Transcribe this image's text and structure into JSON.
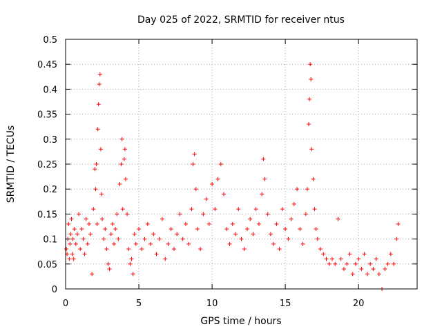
{
  "chart_data": {
    "type": "scatter",
    "title": "Day 025 of 2022, SRMTID for receiver ntus",
    "xlabel": "GPS time / hours",
    "ylabel": "SRMTID / TECUs",
    "xlim": [
      0,
      24
    ],
    "ylim": [
      0,
      0.5
    ],
    "x_ticks": [
      0,
      5,
      10,
      15,
      20
    ],
    "y_ticks": [
      0,
      0.05,
      0.1,
      0.15,
      0.2,
      0.25,
      0.3,
      0.35,
      0.4,
      0.45,
      0.5
    ],
    "x_tick_labels": [
      "0",
      "5",
      "10",
      "15",
      "20"
    ],
    "y_tick_labels": [
      "0",
      "0.05",
      "0.1",
      "0.15",
      "0.2",
      "0.25",
      "0.3",
      "0.35",
      "0.4",
      "0.45",
      "0.5"
    ],
    "grid": true,
    "marker": "+",
    "marker_color": "#ff0000",
    "series": [
      {
        "name": "ntus",
        "points": [
          [
            0.05,
            0.08
          ],
          [
            0.1,
            0.07
          ],
          [
            0.15,
            0.1
          ],
          [
            0.2,
            0.13
          ],
          [
            0.25,
            0.06
          ],
          [
            0.3,
            0.09
          ],
          [
            0.35,
            0.11
          ],
          [
            0.4,
            0.14
          ],
          [
            0.45,
            0.07
          ],
          [
            0.5,
            0.1
          ],
          [
            0.55,
            0.06
          ],
          [
            0.6,
            0.12
          ],
          [
            0.7,
            0.09
          ],
          [
            0.8,
            0.11
          ],
          [
            0.9,
            0.15
          ],
          [
            1.0,
            0.08
          ],
          [
            1.1,
            0.12
          ],
          [
            1.2,
            0.1
          ],
          [
            1.3,
            0.07
          ],
          [
            1.4,
            0.14
          ],
          [
            1.5,
            0.09
          ],
          [
            1.6,
            0.13
          ],
          [
            1.7,
            0.11
          ],
          [
            1.8,
            0.03
          ],
          [
            1.9,
            0.16
          ],
          [
            2.0,
            0.24
          ],
          [
            2.05,
            0.2
          ],
          [
            2.1,
            0.25
          ],
          [
            2.15,
            0.13
          ],
          [
            2.2,
            0.32
          ],
          [
            2.25,
            0.37
          ],
          [
            2.3,
            0.41
          ],
          [
            2.35,
            0.43
          ],
          [
            2.4,
            0.28
          ],
          [
            2.45,
            0.19
          ],
          [
            2.5,
            0.14
          ],
          [
            2.6,
            0.1
          ],
          [
            2.7,
            0.12
          ],
          [
            2.8,
            0.08
          ],
          [
            2.9,
            0.05
          ],
          [
            3.0,
            0.04
          ],
          [
            3.1,
            0.11
          ],
          [
            3.2,
            0.13
          ],
          [
            3.3,
            0.09
          ],
          [
            3.4,
            0.12
          ],
          [
            3.5,
            0.15
          ],
          [
            3.6,
            0.1
          ],
          [
            3.7,
            0.21
          ],
          [
            3.8,
            0.25
          ],
          [
            3.85,
            0.3
          ],
          [
            3.9,
            0.16
          ],
          [
            4.0,
            0.26
          ],
          [
            4.05,
            0.28
          ],
          [
            4.1,
            0.22
          ],
          [
            4.2,
            0.15
          ],
          [
            4.3,
            0.08
          ],
          [
            4.4,
            0.05
          ],
          [
            4.5,
            0.06
          ],
          [
            4.6,
            0.03
          ],
          [
            4.7,
            0.11
          ],
          [
            4.8,
            0.09
          ],
          [
            5.0,
            0.12
          ],
          [
            5.2,
            0.08
          ],
          [
            5.4,
            0.1
          ],
          [
            5.6,
            0.13
          ],
          [
            5.8,
            0.09
          ],
          [
            6.0,
            0.11
          ],
          [
            6.2,
            0.07
          ],
          [
            6.4,
            0.1
          ],
          [
            6.6,
            0.14
          ],
          [
            6.8,
            0.06
          ],
          [
            7.0,
            0.09
          ],
          [
            7.2,
            0.12
          ],
          [
            7.4,
            0.08
          ],
          [
            7.6,
            0.11
          ],
          [
            7.8,
            0.15
          ],
          [
            8.0,
            0.1
          ],
          [
            8.2,
            0.13
          ],
          [
            8.4,
            0.09
          ],
          [
            8.6,
            0.16
          ],
          [
            8.7,
            0.25
          ],
          [
            8.8,
            0.27
          ],
          [
            8.9,
            0.2
          ],
          [
            9.0,
            0.12
          ],
          [
            9.2,
            0.08
          ],
          [
            9.4,
            0.15
          ],
          [
            9.6,
            0.18
          ],
          [
            9.8,
            0.13
          ],
          [
            10.0,
            0.21
          ],
          [
            10.2,
            0.16
          ],
          [
            10.4,
            0.22
          ],
          [
            10.6,
            0.25
          ],
          [
            10.8,
            0.19
          ],
          [
            11.0,
            0.12
          ],
          [
            11.2,
            0.09
          ],
          [
            11.4,
            0.13
          ],
          [
            11.6,
            0.11
          ],
          [
            11.8,
            0.16
          ],
          [
            12.0,
            0.1
          ],
          [
            12.2,
            0.08
          ],
          [
            12.4,
            0.12
          ],
          [
            12.6,
            0.14
          ],
          [
            12.8,
            0.11
          ],
          [
            13.0,
            0.16
          ],
          [
            13.2,
            0.13
          ],
          [
            13.4,
            0.19
          ],
          [
            13.5,
            0.26
          ],
          [
            13.6,
            0.22
          ],
          [
            13.8,
            0.15
          ],
          [
            14.0,
            0.11
          ],
          [
            14.2,
            0.09
          ],
          [
            14.4,
            0.13
          ],
          [
            14.6,
            0.08
          ],
          [
            14.8,
            0.16
          ],
          [
            15.0,
            0.12
          ],
          [
            15.2,
            0.1
          ],
          [
            15.4,
            0.14
          ],
          [
            15.6,
            0.17
          ],
          [
            15.8,
            0.2
          ],
          [
            16.0,
            0.12
          ],
          [
            16.2,
            0.09
          ],
          [
            16.4,
            0.15
          ],
          [
            16.5,
            0.2
          ],
          [
            16.6,
            0.33
          ],
          [
            16.65,
            0.38
          ],
          [
            16.7,
            0.45
          ],
          [
            16.75,
            0.42
          ],
          [
            16.8,
            0.28
          ],
          [
            16.9,
            0.22
          ],
          [
            17.0,
            0.16
          ],
          [
            17.1,
            0.12
          ],
          [
            17.2,
            0.1
          ],
          [
            17.4,
            0.08
          ],
          [
            17.6,
            0.07
          ],
          [
            17.8,
            0.06
          ],
          [
            18.0,
            0.05
          ],
          [
            18.2,
            0.06
          ],
          [
            18.4,
            0.05
          ],
          [
            18.6,
            0.14
          ],
          [
            18.8,
            0.06
          ],
          [
            19.0,
            0.04
          ],
          [
            19.2,
            0.05
          ],
          [
            19.4,
            0.07
          ],
          [
            19.6,
            0.03
          ],
          [
            19.8,
            0.05
          ],
          [
            20.0,
            0.06
          ],
          [
            20.2,
            0.04
          ],
          [
            20.4,
            0.07
          ],
          [
            20.6,
            0.03
          ],
          [
            20.8,
            0.05
          ],
          [
            21.0,
            0.04
          ],
          [
            21.2,
            0.06
          ],
          [
            21.4,
            0.03
          ],
          [
            21.6,
            0.0
          ],
          [
            21.8,
            0.04
          ],
          [
            22.0,
            0.05
          ],
          [
            22.2,
            0.07
          ],
          [
            22.4,
            0.05
          ],
          [
            22.6,
            0.1
          ],
          [
            22.7,
            0.13
          ]
        ]
      }
    ]
  }
}
